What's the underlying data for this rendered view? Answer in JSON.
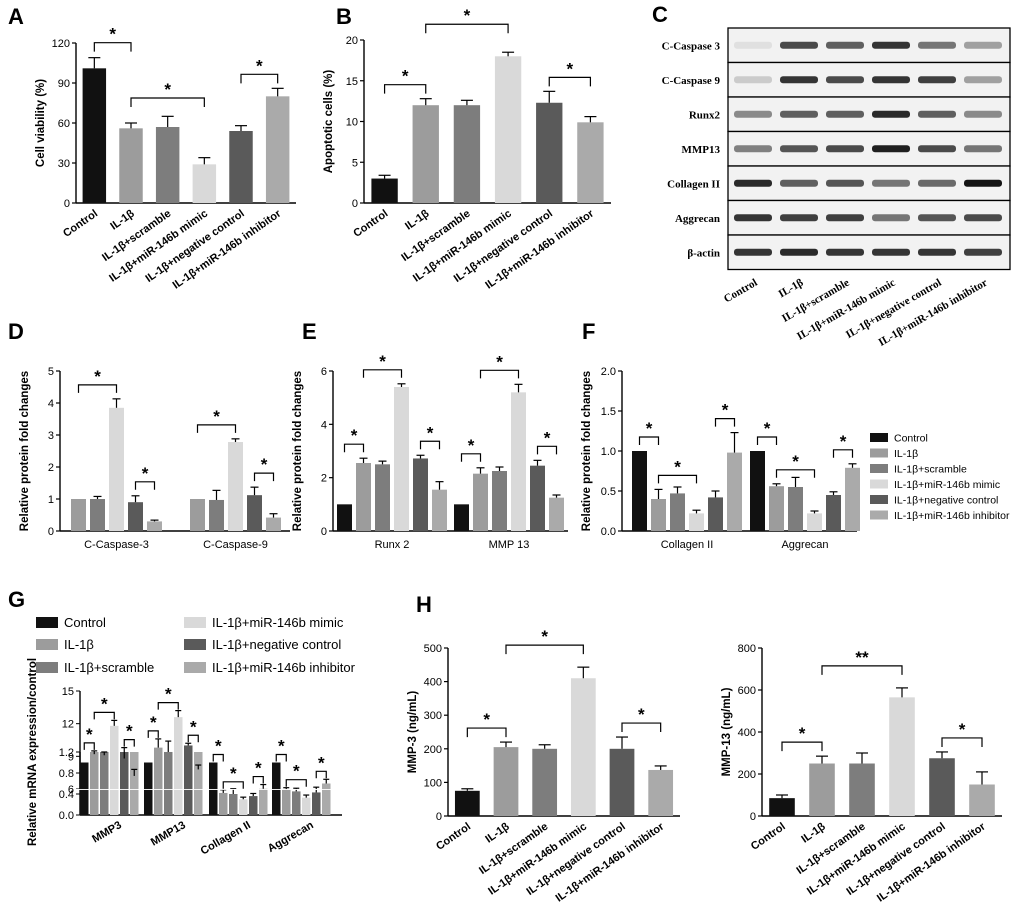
{
  "colors": {
    "Control": "#111111",
    "IL-1β": "#9c9c9c",
    "IL-1β+scramble": "#7d7d7d",
    "IL-1β+miR-146b mimic": "#d9d9d9",
    "IL-1β+negative control": "#5a5a5a",
    "IL-1β+miR-146b inhibitor": "#aaaaaa"
  },
  "groups": [
    "Control",
    "IL-1β",
    "IL-1β+scramble",
    "IL-1β+miR-146b mimic",
    "IL-1β+negative control",
    "IL-1β+miR-146b inhibitor"
  ],
  "chart_data": [
    {
      "panel": "A",
      "type": "bar",
      "ylabel": "Cell viability (%)",
      "ylim": [
        0,
        120
      ],
      "yticks": [
        0,
        30,
        60,
        90,
        120
      ],
      "values": [
        101,
        56,
        57,
        29,
        54,
        80
      ],
      "errors": [
        8,
        4,
        8,
        5,
        4,
        6
      ],
      "brackets": [
        {
          "from": 0,
          "to": 1,
          "text": "*"
        },
        {
          "from": 1,
          "to": 3,
          "text": "*"
        },
        {
          "from": 4,
          "to": 5,
          "text": "*"
        }
      ]
    },
    {
      "panel": "B",
      "type": "bar",
      "ylabel": "Apoptotic cells (%)",
      "ylim": [
        0,
        20
      ],
      "yticks": [
        0,
        5,
        10,
        15,
        20
      ],
      "values": [
        3,
        12,
        12,
        18,
        12.3,
        9.9
      ],
      "errors": [
        0.4,
        0.8,
        0.6,
        0.5,
        1.4,
        0.7
      ],
      "brackets": [
        {
          "from": 0,
          "to": 1,
          "text": "*"
        },
        {
          "from": 1,
          "to": 3,
          "text": "*"
        },
        {
          "from": 4,
          "to": 5,
          "text": "*"
        }
      ]
    },
    {
      "panel": "D",
      "type": "grouped_bar",
      "ylabel": "Relative protein fold changes",
      "ylim": [
        0,
        5
      ],
      "yticks": [
        0,
        1,
        2,
        3,
        4,
        5
      ],
      "categories": [
        "C-Caspase-3",
        "C-Caspase-9"
      ],
      "series": [
        {
          "name": "Control",
          "values": [
            0,
            0
          ]
        },
        {
          "name": "IL-1β",
          "values": [
            1,
            1
          ]
        },
        {
          "name": "IL-1β+scramble",
          "values": [
            1,
            0.97
          ]
        },
        {
          "name": "IL-1β+miR-146b mimic",
          "values": [
            3.85,
            2.78
          ]
        },
        {
          "name": "IL-1β+negative control",
          "values": [
            0.9,
            1.12
          ]
        },
        {
          "name": "IL-1β+miR-146b inhibitor",
          "values": [
            0.3,
            0.42
          ]
        }
      ],
      "errors": [
        [
          0,
          0
        ],
        [
          0,
          0
        ],
        [
          0.08,
          0.3
        ],
        [
          0.28,
          0.1
        ],
        [
          0.2,
          0.25
        ],
        [
          0.04,
          0.12
        ]
      ],
      "brackets": [
        {
          "from": 1,
          "to": 3,
          "text": "*"
        },
        {
          "from": 4,
          "to": 5,
          "text": "*"
        }
      ]
    },
    {
      "panel": "E",
      "type": "grouped_bar",
      "ylabel": "Relative protein fold changes",
      "ylim": [
        0,
        6
      ],
      "yticks": [
        0,
        2,
        4,
        6
      ],
      "categories": [
        "Runx 2",
        "MMP 13"
      ],
      "series": [
        {
          "name": "Control",
          "values": [
            1,
            1
          ]
        },
        {
          "name": "IL-1β",
          "values": [
            2.55,
            2.15
          ]
        },
        {
          "name": "IL-1β+scramble",
          "values": [
            2.5,
            2.25
          ]
        },
        {
          "name": "IL-1β+miR-146b mimic",
          "values": [
            5.4,
            5.2
          ]
        },
        {
          "name": "IL-1β+negative control",
          "values": [
            2.72,
            2.45
          ]
        },
        {
          "name": "IL-1β+miR-146b inhibitor",
          "values": [
            1.55,
            1.25
          ]
        }
      ],
      "errors": [
        [
          0,
          0
        ],
        [
          0.18,
          0.22
        ],
        [
          0.12,
          0.15
        ],
        [
          0.12,
          0.3
        ],
        [
          0.12,
          0.2
        ],
        [
          0.3,
          0.1
        ]
      ],
      "brackets": [
        {
          "from": 0,
          "to": 1,
          "text": "*"
        },
        {
          "from": 1,
          "to": 3,
          "text": "*"
        },
        {
          "from": 4,
          "to": 5,
          "text": "*"
        }
      ]
    },
    {
      "panel": "F",
      "type": "grouped_bar",
      "ylabel": "Relative protein fold changes",
      "ylim": [
        0,
        2.0
      ],
      "yticks": [
        0.0,
        0.5,
        1.0,
        1.5,
        2.0
      ],
      "categories": [
        "Collagen II",
        "Aggrecan"
      ],
      "series": [
        {
          "name": "Control",
          "values": [
            1,
            1
          ]
        },
        {
          "name": "IL-1β",
          "values": [
            0.4,
            0.56
          ]
        },
        {
          "name": "IL-1β+scramble",
          "values": [
            0.47,
            0.55
          ]
        },
        {
          "name": "IL-1β+miR-146b mimic",
          "values": [
            0.22,
            0.22
          ]
        },
        {
          "name": "IL-1β+negative control",
          "values": [
            0.42,
            0.45
          ]
        },
        {
          "name": "IL-1β+miR-146b inhibitor",
          "values": [
            0.98,
            0.79
          ]
        }
      ],
      "errors": [
        [
          0,
          0
        ],
        [
          0.12,
          0.03
        ],
        [
          0.08,
          0.12
        ],
        [
          0.04,
          0.03
        ],
        [
          0.08,
          0.04
        ],
        [
          0.25,
          0.05
        ]
      ],
      "brackets": [
        {
          "from": 0,
          "to": 1,
          "text": "*"
        },
        {
          "from": 1,
          "to": 3,
          "text": "*"
        },
        {
          "from": 4,
          "to": 5,
          "text": "*"
        }
      ]
    },
    {
      "panel": "G",
      "type": "grouped_bar_broken_axis",
      "ylabel": "Relative mRNA expression/control",
      "ylim_upper": [
        6,
        15
      ],
      "yticks_upper": [
        6,
        9,
        12,
        15
      ],
      "ylim_lower": [
        0,
        1.2
      ],
      "yticks_lower": [
        0.0,
        0.4,
        0.8,
        1.2
      ],
      "categories": [
        "MMP3",
        "MMP13",
        "Collagen II",
        "Aggrecan"
      ],
      "series": [
        {
          "name": "Control",
          "values": [
            1,
            1,
            1,
            1
          ]
        },
        {
          "name": "IL-1β",
          "values": [
            9.2,
            9.8,
            0.42,
            0.48
          ]
        },
        {
          "name": "IL-1β+scramble",
          "values": [
            9.1,
            9.4,
            0.4,
            0.45
          ]
        },
        {
          "name": "IL-1β+miR-146b mimic",
          "values": [
            11.8,
            12.6,
            0.3,
            0.33
          ]
        },
        {
          "name": "IL-1β+negative control",
          "values": [
            8.8,
            10,
            0.36,
            0.43
          ]
        },
        {
          "name": "IL-1β+miR-146b inhibitor",
          "values": [
            7.2,
            7.8,
            0.5,
            0.6
          ]
        }
      ],
      "errors": [
        [
          0,
          0,
          0,
          0
        ],
        [
          0.3,
          0.8,
          0.06,
          0.04
        ],
        [
          0.3,
          1,
          0.1,
          0.06
        ],
        [
          0.5,
          0.6,
          0.04,
          0.05
        ],
        [
          1,
          0.2,
          0.05,
          0.1
        ],
        [
          0.6,
          0.4,
          0.08,
          0.08
        ]
      ],
      "brackets": [
        {
          "from": 0,
          "to": 1,
          "text": "*"
        },
        {
          "from": 1,
          "to": 3,
          "text": "*"
        },
        {
          "from": 4,
          "to": 5,
          "text": "*"
        }
      ]
    },
    {
      "panel": "H-left",
      "type": "bar",
      "ylabel": "MMP-3 (ng/mL)",
      "ylim": [
        0,
        500
      ],
      "yticks": [
        0,
        100,
        200,
        300,
        400,
        500
      ],
      "values": [
        75,
        205,
        200,
        410,
        200,
        137
      ],
      "errors": [
        6,
        15,
        12,
        33,
        35,
        12
      ],
      "brackets": [
        {
          "from": 0,
          "to": 1,
          "text": "*"
        },
        {
          "from": 1,
          "to": 3,
          "text": "*"
        },
        {
          "from": 4,
          "to": 5,
          "text": "*"
        }
      ]
    },
    {
      "panel": "H-right",
      "type": "bar",
      "ylabel": "MMP-13 (ng/mL)",
      "ylim": [
        0,
        800
      ],
      "yticks": [
        0,
        200,
        400,
        600,
        800
      ],
      "values": [
        85,
        250,
        250,
        565,
        275,
        150
      ],
      "errors": [
        15,
        35,
        50,
        45,
        30,
        60
      ],
      "brackets": [
        {
          "from": 0,
          "to": 1,
          "text": "*"
        },
        {
          "from": 1,
          "to": 3,
          "text": "**"
        },
        {
          "from": 4,
          "to": 5,
          "text": "*"
        }
      ]
    }
  ],
  "panel_labels": [
    "A",
    "B",
    "C",
    "D",
    "E",
    "F",
    "G",
    "H"
  ],
  "western_blot": {
    "rows": [
      "C-Caspase 3",
      "C-Caspase 9",
      "Runx2",
      "MMP13",
      "Collagen II",
      "Aggrecan",
      "β-actin"
    ],
    "intensities": [
      [
        0.05,
        0.75,
        0.65,
        0.85,
        0.55,
        0.35
      ],
      [
        0.15,
        0.85,
        0.75,
        0.85,
        0.8,
        0.35
      ],
      [
        0.45,
        0.65,
        0.65,
        0.9,
        0.65,
        0.45
      ],
      [
        0.5,
        0.7,
        0.75,
        0.95,
        0.75,
        0.55
      ],
      [
        0.9,
        0.65,
        0.7,
        0.55,
        0.6,
        1.0
      ],
      [
        0.85,
        0.8,
        0.8,
        0.55,
        0.7,
        0.75
      ],
      [
        0.85,
        0.9,
        0.85,
        0.85,
        0.85,
        0.8
      ]
    ]
  }
}
